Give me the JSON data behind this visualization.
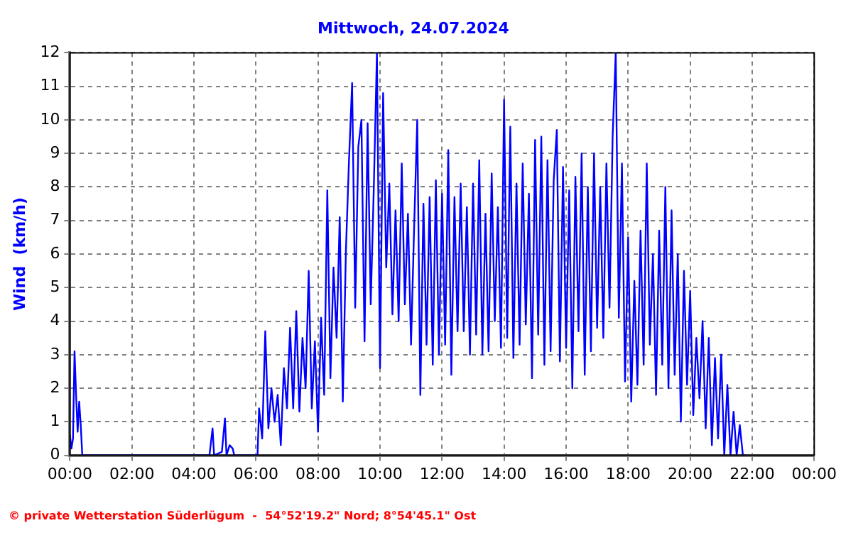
{
  "chart_data": {
    "type": "line",
    "title": "Mittwoch, 24.07.2024",
    "ylabel": "Wind  (km/h)",
    "annotations": [
      "© private Wetterstation Süderlügum  -  54°52'19.2\" Nord; 8°54'45.1\" Ost"
    ],
    "xlim": [
      0,
      24
    ],
    "xticks": [
      {
        "value": 0,
        "label": "00:00"
      },
      {
        "value": 2,
        "label": "02:00"
      },
      {
        "value": 4,
        "label": "04:00"
      },
      {
        "value": 6,
        "label": "06:00"
      },
      {
        "value": 8,
        "label": "08:00"
      },
      {
        "value": 10,
        "label": "10:00"
      },
      {
        "value": 12,
        "label": "12:00"
      },
      {
        "value": 14,
        "label": "14:00"
      },
      {
        "value": 16,
        "label": "16:00"
      },
      {
        "value": 18,
        "label": "18:00"
      },
      {
        "value": 20,
        "label": "20:00"
      },
      {
        "value": 22,
        "label": "22:00"
      },
      {
        "value": 24,
        "label": "00:00"
      }
    ],
    "ylim": [
      0,
      12
    ],
    "yticks": [
      0,
      1,
      2,
      3,
      4,
      5,
      6,
      7,
      8,
      9,
      10,
      11,
      12
    ],
    "grid": true,
    "legend": false,
    "marker": "none",
    "line_style": "solid",
    "series": [
      {
        "color": "#0000ff",
        "x": [
          0,
          0.05,
          0.1,
          0.15,
          0.2,
          0.25,
          0.3,
          0.35,
          0.4,
          4.5,
          4.6,
          4.65,
          4.9,
          5.0,
          5.05,
          5.15,
          5.25,
          5.3,
          6.05,
          6.1,
          6.2,
          6.3,
          6.4,
          6.5,
          6.6,
          6.7,
          6.8,
          6.9,
          7.0,
          7.1,
          7.2,
          7.3,
          7.4,
          7.5,
          7.6,
          7.7,
          7.8,
          7.9,
          8.0,
          8.1,
          8.2,
          8.3,
          8.4,
          8.5,
          8.6,
          8.7,
          8.8,
          8.9,
          9.0,
          9.1,
          9.2,
          9.3,
          9.4,
          9.5,
          9.6,
          9.7,
          9.8,
          9.9,
          10.0,
          10.1,
          10.2,
          10.3,
          10.4,
          10.5,
          10.6,
          10.7,
          10.8,
          10.9,
          11.0,
          11.1,
          11.2,
          11.3,
          11.4,
          11.5,
          11.6,
          11.7,
          11.8,
          11.9,
          12.0,
          12.1,
          12.2,
          12.3,
          12.4,
          12.5,
          12.6,
          12.7,
          12.8,
          12.9,
          13.0,
          13.1,
          13.2,
          13.3,
          13.4,
          13.5,
          13.6,
          13.7,
          13.8,
          13.9,
          14.0,
          14.1,
          14.2,
          14.3,
          14.4,
          14.5,
          14.6,
          14.7,
          14.8,
          14.9,
          15.0,
          15.1,
          15.2,
          15.3,
          15.4,
          15.5,
          15.6,
          15.7,
          15.8,
          15.9,
          16.0,
          16.1,
          16.2,
          16.3,
          16.4,
          16.5,
          16.6,
          16.7,
          16.8,
          16.9,
          17.0,
          17.1,
          17.2,
          17.3,
          17.4,
          17.5,
          17.6,
          17.7,
          17.8,
          17.9,
          18.0,
          18.1,
          18.2,
          18.3,
          18.4,
          18.5,
          18.6,
          18.7,
          18.8,
          18.9,
          19.0,
          19.1,
          19.2,
          19.3,
          19.4,
          19.5,
          19.6,
          19.7,
          19.8,
          19.9,
          20.0,
          20.1,
          20.2,
          20.3,
          20.4,
          20.5,
          20.6,
          20.7,
          20.8,
          20.9,
          21.0,
          21.1,
          21.2,
          21.3,
          21.4,
          21.5,
          21.6,
          21.7,
          21.8
        ],
        "values": [
          0.6,
          0.2,
          0.5,
          3.1,
          1.8,
          0.7,
          1.6,
          0.9,
          0,
          0,
          0.8,
          0,
          0.1,
          1.1,
          0,
          0.3,
          0.2,
          0,
          0,
          1.4,
          0.5,
          3.7,
          0.8,
          2.0,
          1.0,
          1.8,
          0.3,
          2.6,
          1.4,
          3.8,
          1.4,
          4.3,
          1.3,
          3.5,
          2.0,
          5.5,
          1.4,
          3.4,
          0.7,
          4.1,
          1.8,
          7.9,
          2.3,
          5.6,
          3.5,
          7.1,
          1.6,
          6.1,
          8.8,
          11.1,
          4.4,
          9.2,
          10.0,
          3.4,
          9.9,
          4.5,
          8.0,
          12.0,
          2.6,
          10.8,
          5.6,
          8.1,
          4.2,
          7.3,
          4.0,
          8.7,
          4.5,
          7.2,
          3.3,
          6.8,
          10.0,
          1.8,
          7.5,
          3.3,
          7.7,
          2.7,
          8.2,
          3.0,
          7.8,
          3.3,
          9.1,
          2.4,
          7.7,
          3.7,
          8.1,
          3.7,
          7.4,
          3.0,
          8.1,
          3.6,
          8.8,
          3.0,
          7.2,
          3.1,
          8.4,
          4.0,
          7.4,
          3.2,
          10.6,
          3.5,
          9.8,
          2.9,
          8.1,
          3.3,
          8.7,
          3.9,
          7.8,
          2.3,
          9.4,
          3.6,
          9.5,
          2.7,
          8.8,
          3.1,
          8.2,
          9.7,
          2.8,
          8.6,
          3.2,
          7.9,
          2.0,
          8.3,
          3.7,
          9.0,
          2.4,
          8.0,
          3.1,
          9.0,
          3.8,
          8.0,
          3.5,
          8.7,
          4.4,
          9.5,
          12.0,
          4.1,
          8.7,
          2.2,
          6.5,
          1.6,
          5.2,
          2.1,
          6.7,
          2.7,
          8.7,
          3.3,
          6.0,
          1.8,
          6.7,
          2.7,
          8.0,
          2.0,
          7.3,
          2.4,
          6.0,
          1.0,
          5.5,
          2.1,
          4.9,
          1.2,
          3.5,
          1.7,
          4.0,
          0.8,
          3.5,
          0.3,
          2.9,
          0.5,
          3.0,
          0,
          2.1,
          0,
          1.3,
          0,
          0.9,
          0,
          0
        ]
      }
    ]
  }
}
